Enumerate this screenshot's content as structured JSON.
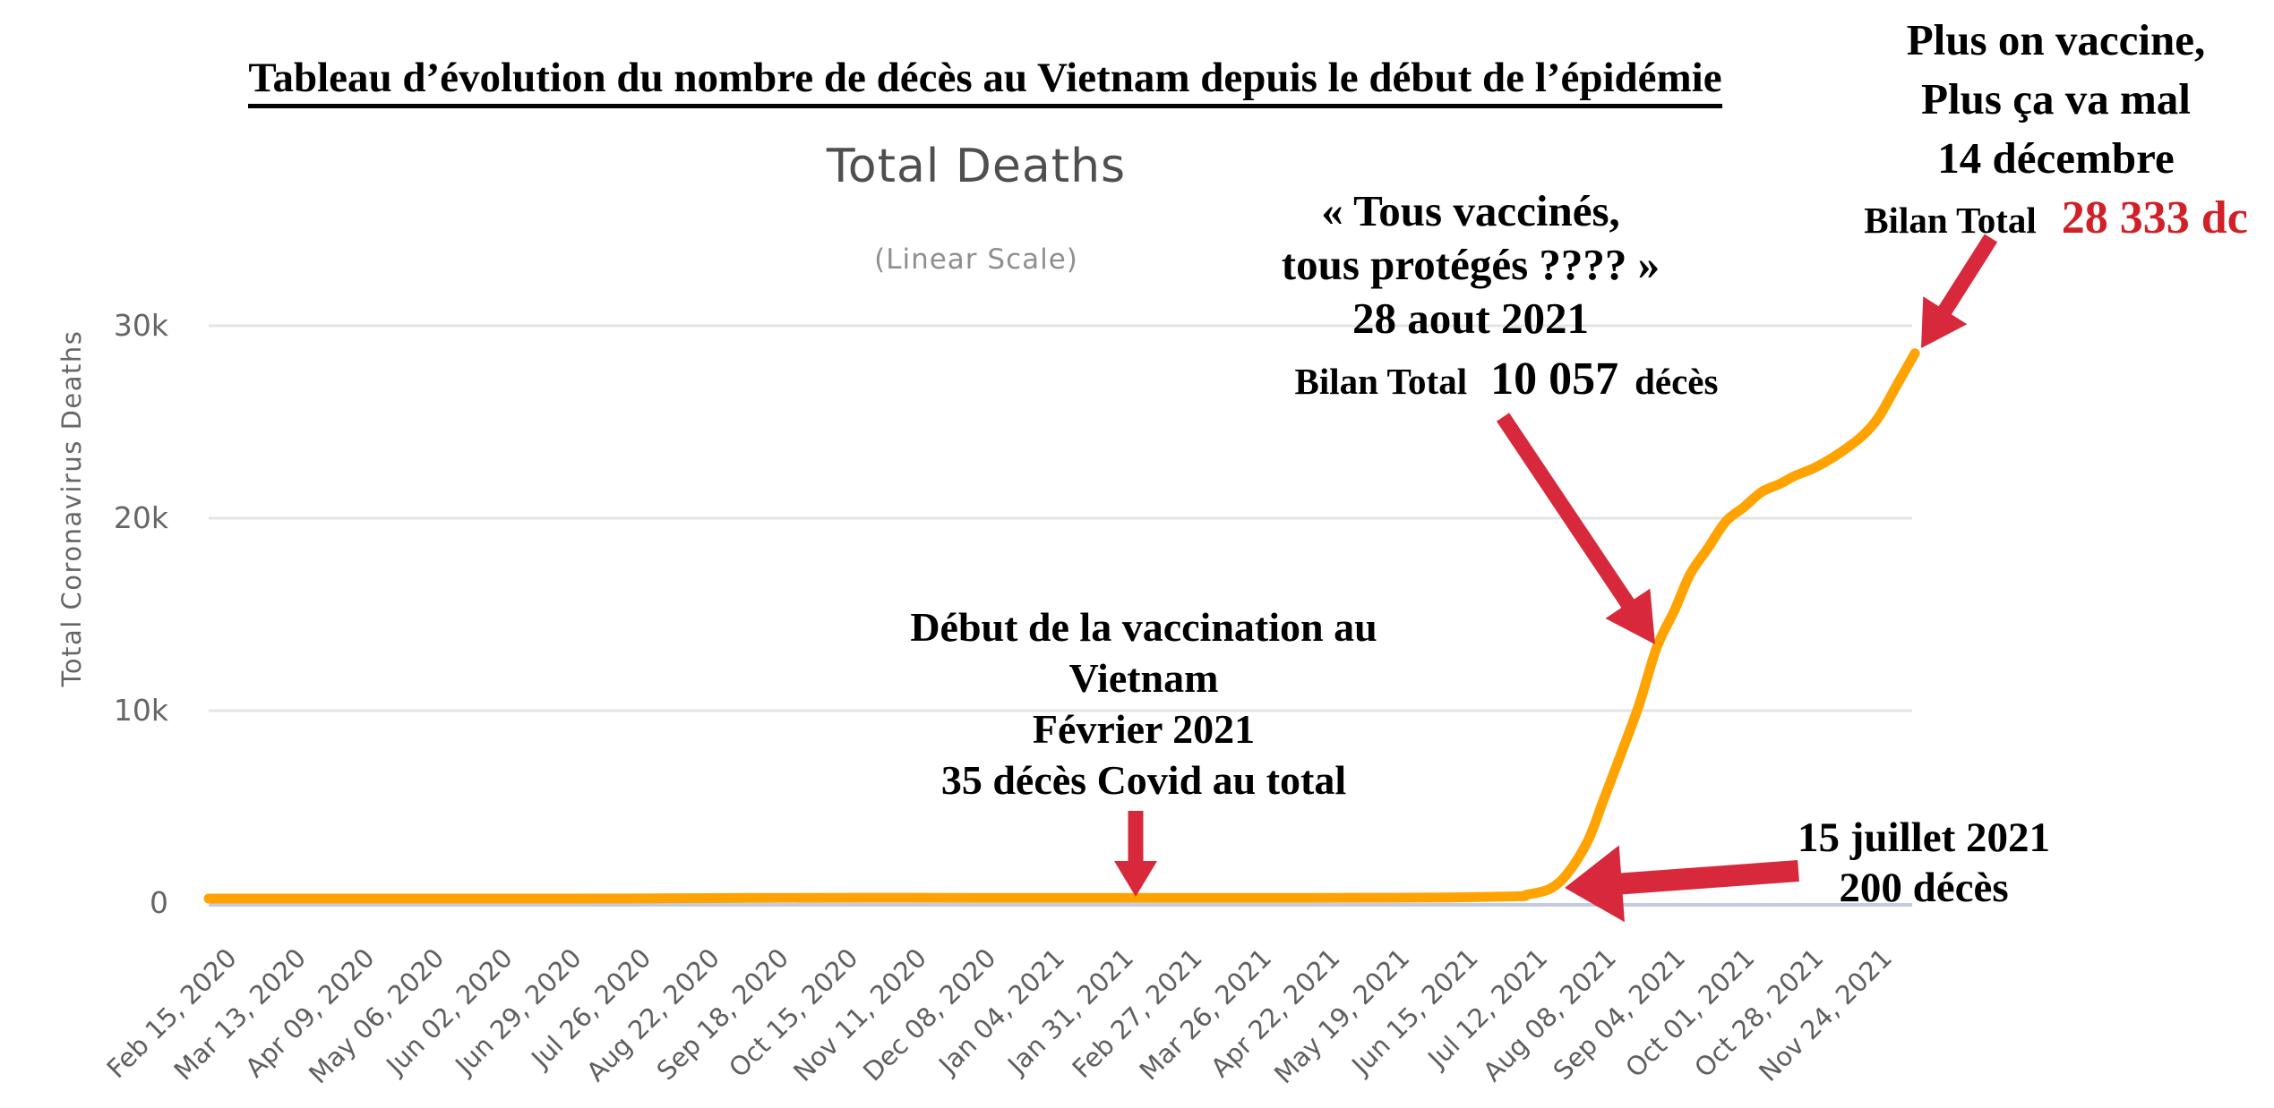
{
  "page_title": "Tableau d’évolution du nombre de décès au Vietnam depuis le début de l’épidémie",
  "colors": {
    "curve": "#ffa303",
    "arrow": "#d7293b",
    "value_red": "#cf2127",
    "grid": "#e4e4e4",
    "axis": "#c3cbe2",
    "tick_text": "#5f5f5f",
    "title_gray": "#4f4f4f",
    "subtitle_gray": "#8f8f8f"
  },
  "annotations": {
    "top_right": {
      "lines": [
        "Plus on vaccine,",
        "Plus ça va mal",
        "14 décembre"
      ],
      "bilan_label": "Bilan Total",
      "bilan_value": "28 333 dc"
    },
    "august": {
      "lines": [
        "« Tous vaccinés,",
        "tous protégés ???? »",
        "28 aout 2021"
      ],
      "bilan_label": "Bilan Total",
      "bilan_value": "10 057",
      "bilan_suffix": "décès"
    },
    "vaccination_start": {
      "lines": [
        "Début de la vaccination au",
        "Vietnam",
        "Février 2021",
        "35 décès Covid au total"
      ]
    },
    "july": {
      "lines": [
        "15 juillet 2021",
        "200 décès"
      ]
    },
    "arrows": [
      {
        "name": "arrow-to-curve-end-december",
        "from": [
          2223,
          266
        ],
        "to": [
          2145,
          389
        ],
        "shaft": 17,
        "head_len": 50,
        "head_w": 58
      },
      {
        "name": "arrow-to-curve-august",
        "from": [
          1678,
          466
        ],
        "to": [
          1848,
          720
        ],
        "shaft": 17,
        "head_len": 55,
        "head_w": 60
      },
      {
        "name": "arrow-down-vaccination-start",
        "from": [
          1268,
          906
        ],
        "to": [
          1268,
          1002
        ],
        "shaft": 17,
        "head_len": 40,
        "head_w": 48
      },
      {
        "name": "arrow-left-july",
        "from": [
          2008,
          973
        ],
        "to": [
          1747,
          992
        ],
        "shaft": 24,
        "head_len": 64,
        "head_w": 86
      }
    ]
  },
  "chart_data": {
    "type": "line",
    "title": "Total Deaths",
    "subtitle": "(Linear Scale)",
    "ylabel": "Total Coronavirus Deaths",
    "ylim": [
      0,
      30000
    ],
    "grid": true,
    "legend": false,
    "y_ticks": [
      {
        "label": "30k",
        "value": 30000
      },
      {
        "label": "20k",
        "value": 20000
      },
      {
        "label": "10k",
        "value": 10000
      },
      {
        "label": "0",
        "value": 0
      }
    ],
    "x_tick_labels": [
      "Feb 15, 2020",
      "Mar 13, 2020",
      "Apr 09, 2020",
      "May 06, 2020",
      "Jun 02, 2020",
      "Jun 29, 2020",
      "Jul 26, 2020",
      "Aug 22, 2020",
      "Sep 18, 2020",
      "Oct 15, 2020",
      "Nov 11, 2020",
      "Dec 08, 2020",
      "Jan 04, 2021",
      "Jan 31, 2021",
      "Feb 27, 2021",
      "Mar 26, 2021",
      "Apr 22, 2021",
      "May 19, 2021",
      "Jun 15, 2021",
      "Jul 12, 2021",
      "Aug 08, 2021",
      "Sep 04, 2021",
      "Oct 01, 2021",
      "Oct 28, 2021",
      "Nov 24, 2021"
    ],
    "series": [
      {
        "name": "Total Coronavirus Deaths",
        "color": "#ffa303",
        "points": [
          [
            "Feb 15, 2020",
            0
          ],
          [
            "Apr 09, 2020",
            0
          ],
          [
            "Jul 31, 2020",
            6
          ],
          [
            "Sep 18, 2020",
            35
          ],
          [
            "Dec 08, 2020",
            35
          ],
          [
            "Feb 01, 2021",
            35
          ],
          [
            "Apr 22, 2021",
            35
          ],
          [
            "May 19, 2021",
            44
          ],
          [
            "Jun 15, 2021",
            61
          ],
          [
            "Jul 12, 2021",
            123
          ],
          [
            "Jul 15, 2021",
            200
          ],
          [
            "Jul 24, 2021",
            500
          ],
          [
            "Jul 31, 2021",
            1306
          ],
          [
            "Aug 08, 2021",
            3016
          ],
          [
            "Aug 14, 2021",
            5088
          ],
          [
            "Aug 21, 2021",
            7540
          ],
          [
            "Aug 28, 2021",
            10057
          ],
          [
            "Sep 04, 2021",
            13074
          ],
          [
            "Sep 11, 2021",
            15018
          ],
          [
            "Sep 17, 2021",
            16857
          ],
          [
            "Sep 24, 2021",
            18220
          ],
          [
            "Oct 01, 2021",
            19601
          ],
          [
            "Oct 08, 2021",
            20337
          ],
          [
            "Oct 15, 2021",
            21131
          ],
          [
            "Oct 22, 2021",
            21543
          ],
          [
            "Oct 28, 2021",
            21966
          ],
          [
            "Nov 04, 2021",
            22342
          ],
          [
            "Nov 11, 2021",
            22849
          ],
          [
            "Nov 18, 2021",
            23476
          ],
          [
            "Nov 24, 2021",
            24118
          ],
          [
            "Nov 30, 2021",
            25055
          ],
          [
            "Dec 07, 2021",
            26700
          ],
          [
            "Dec 14, 2021",
            28333
          ]
        ]
      }
    ],
    "key_events": [
      {
        "date": "Février 2021",
        "value": 35,
        "note": "Début de la vaccination au Vietnam"
      },
      {
        "date": "15 juillet 2021",
        "value": 200,
        "note": "200 décès"
      },
      {
        "date": "28 aout 2021",
        "value": 10057,
        "note": "« Tous vaccinés, tous protégés ???? » — Bilan Total 10 057 décès"
      },
      {
        "date": "14 décembre",
        "value": 28333,
        "note": "Plus on vaccine, Plus ça va mal — Bilan Total 28 333 dc"
      }
    ]
  }
}
